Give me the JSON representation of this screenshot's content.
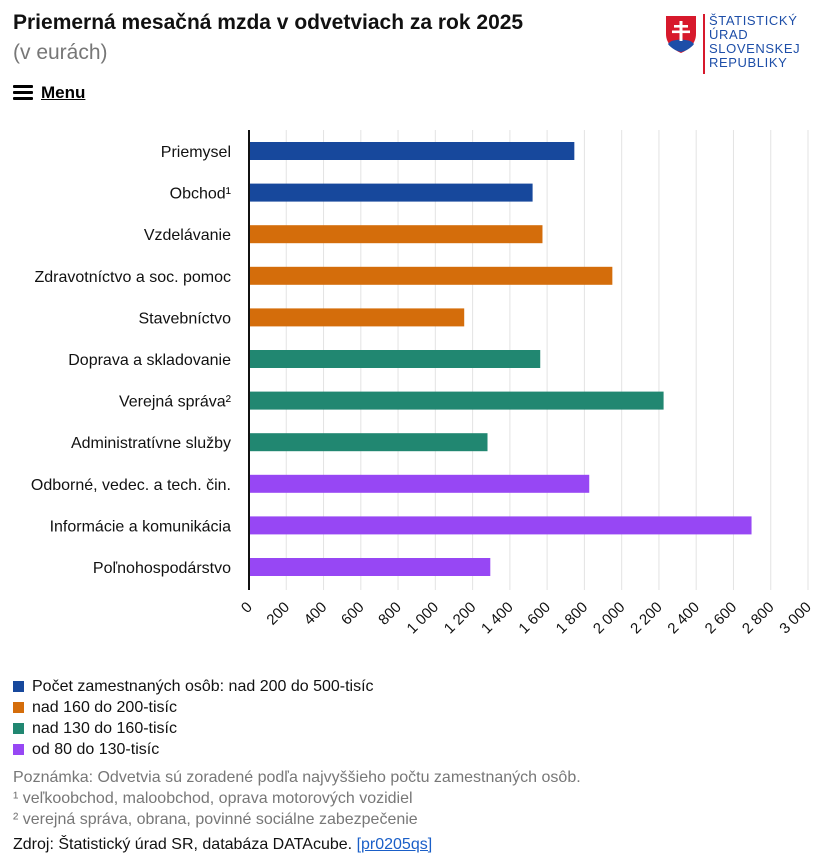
{
  "header": {
    "title": "Priemerná mesačná mzda v odvetviach za rok 2025",
    "subtitle": "(v eurách)",
    "logo_text": "ŠTATISTICKÝ\nÚRAD\nSLOVENSKEJ\nREPUBLIKY",
    "menu_label": "Menu"
  },
  "chart_data": {
    "type": "bar",
    "orientation": "horizontal",
    "title": "Priemerná mesačná mzda v odvetviach za rok 2025",
    "subtitle": "(v eurách)",
    "categories": [
      "Priemysel",
      "Obchod¹",
      "Vzdelávanie",
      "Zdravotníctvo a soc. pomoc",
      "Stavebníctvo",
      "Doprava a skladovanie",
      "Verejná správa²",
      "Administratívne služby",
      "Odborné, vedec. a tech. čin.",
      "Informácie a komunikácia",
      "Poľnohospodárstvo"
    ],
    "values": [
      1746,
      1522,
      1575,
      1950,
      1155,
      1563,
      2225,
      1280,
      1826,
      2697,
      1295
    ],
    "groups": [
      0,
      0,
      1,
      1,
      1,
      2,
      2,
      2,
      3,
      3,
      3
    ],
    "group_colors": [
      "#17489c",
      "#d46d0b",
      "#218771",
      "#9747f4"
    ],
    "xlim": [
      0,
      3000
    ],
    "ticks": [
      0,
      200,
      400,
      600,
      800,
      1000,
      1200,
      1400,
      1600,
      1800,
      2000,
      2200,
      2400,
      2600,
      2800,
      3000
    ],
    "tick_labels": [
      "0",
      "200",
      "400",
      "600",
      "800",
      "1 000",
      "1 200",
      "1 400",
      "1 600",
      "1 800",
      "2 000",
      "2 200",
      "2 400",
      "2 600",
      "2 800",
      "3 000"
    ],
    "grid": true
  },
  "legend": {
    "items": [
      {
        "label": "Počet zamestnaných osôb: nad 200 do 500-tisíc",
        "color": "#17489c"
      },
      {
        "label": "nad 160 do 200-tisíc",
        "color": "#d46d0b"
      },
      {
        "label": "nad 130 do 160-tisíc",
        "color": "#218771"
      },
      {
        "label": "od 80 do 130-tisíc",
        "color": "#9747f4"
      }
    ]
  },
  "notes": {
    "note": "Poznámka: Odvetvia sú zoradené podľa najvyššieho počtu zamestnaných osôb.",
    "footnote1": "¹ veľkoobchod, maloobchod, oprava motorových vozidiel",
    "footnote2": "² verejná správa, obrana, povinné sociálne zabezpečenie"
  },
  "source": {
    "text": "Zdroj: Štatistický úrad SR, databáza DATAcube.",
    "link_label": "[pr0205qs]"
  }
}
